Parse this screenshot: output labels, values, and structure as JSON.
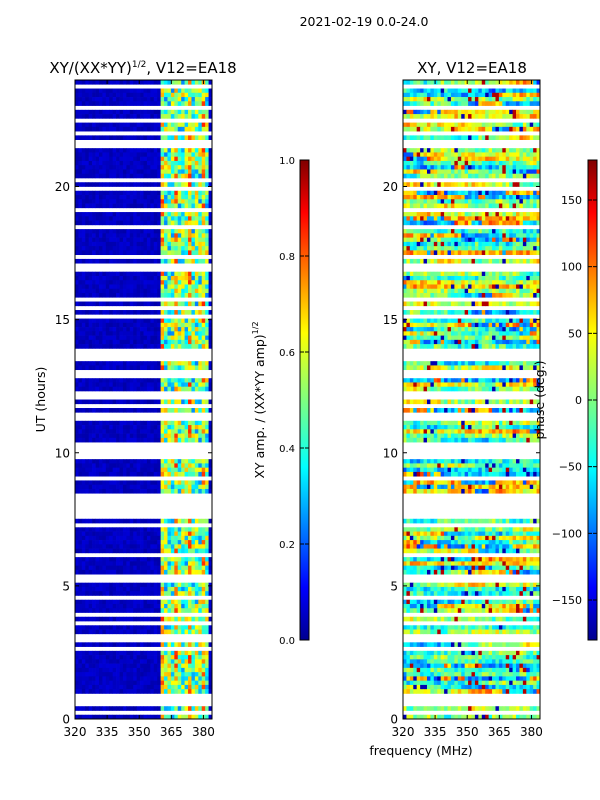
{
  "suptitle": "2021-02-19 0.0-24.0",
  "xlabel": "frequency (MHz)",
  "chart_data": [
    {
      "type": "heatmap",
      "title": "XY/(XX*YY)",
      "title_exp": "1/2",
      "title_suffix": ", V12=EA18",
      "ylabel": "UT (hours)",
      "xlim": [
        320,
        384
      ],
      "ylim": [
        0,
        24
      ],
      "x_ticks": [
        320,
        335,
        350,
        365,
        380
      ],
      "y_ticks": [
        0,
        5,
        10,
        15,
        20
      ],
      "colorbar": {
        "label": "XY amp. / (XX*YY amp)",
        "label_exp": "1/2",
        "range": [
          0.0,
          1.0
        ],
        "ticks": [
          0.0,
          0.2,
          0.4,
          0.6,
          0.8,
          1.0
        ],
        "tick_labels": [
          "0.0",
          "0.2",
          "0.4",
          "0.6",
          "0.8",
          "1.0"
        ],
        "colormap": "jet"
      }
    },
    {
      "type": "heatmap",
      "title": "XY, V12=EA18",
      "ylabel": "",
      "xlim": [
        320,
        384
      ],
      "ylim": [
        0,
        24
      ],
      "x_ticks": [
        320,
        335,
        350,
        365,
        380
      ],
      "y_ticks": [
        0,
        5,
        10,
        15,
        20
      ],
      "colorbar": {
        "label": "phase (deg.)",
        "range": [
          -180,
          180
        ],
        "ticks": [
          -150,
          -100,
          -50,
          0,
          50,
          100,
          150
        ],
        "tick_labels": [
          "−150",
          "−100",
          "−50",
          "0",
          "50",
          "100",
          "150"
        ],
        "colormap": "jet"
      }
    }
  ]
}
